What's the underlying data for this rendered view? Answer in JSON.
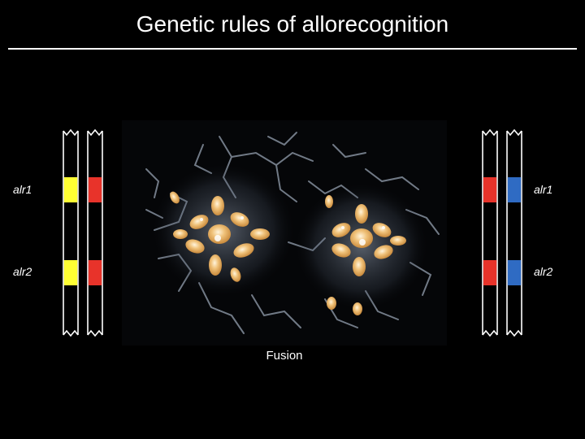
{
  "title": "Genetic rules of allorecognition",
  "caption": "Fusion",
  "left_labels": {
    "gene1": "alr1",
    "gene2": "alr2"
  },
  "right_labels": {
    "gene1": "alr1",
    "gene2": "alr2"
  },
  "left_individual": {
    "chromosome_a": {
      "alr1": "yellow",
      "alr2": "yellow"
    },
    "chromosome_b": {
      "alr1": "red",
      "alr2": "red"
    }
  },
  "right_individual": {
    "chromosome_a": {
      "alr1": "red",
      "alr2": "red"
    },
    "chromosome_b": {
      "alr1": "blue",
      "alr2": "blue"
    }
  },
  "colors": {
    "yellow": "#FFFF33",
    "red": "#E8332A",
    "blue": "#2F6BC3",
    "background": "#000000"
  }
}
